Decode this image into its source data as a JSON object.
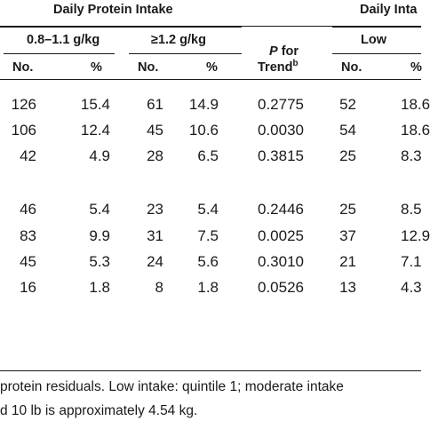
{
  "header": {
    "group1": "Daily Protein Intake",
    "group2": "Daily Inta",
    "sub1": "0.8–1.1 g/kg",
    "sub2": "≥1.2 g/kg",
    "sub3": "Low",
    "p_italic": "P",
    "p_rest": " for",
    "trend": "Trend",
    "trend_sup": "b",
    "col_no": "No.",
    "col_pct": "%"
  },
  "rows": [
    {
      "no1": "126",
      "pct1": "15.4",
      "no2": "61",
      "pct2": "14.9",
      "p": "0.2775",
      "no3": "52",
      "pct3": "18.6"
    },
    {
      "no1": "106",
      "pct1": "12.4",
      "no2": "45",
      "pct2": "10.6",
      "p": "0.0030",
      "no3": "54",
      "pct3": "18.6"
    },
    {
      "no1": "42",
      "pct1": "4.9",
      "no2": "28",
      "pct2": "6.5",
      "p": "0.3815",
      "no3": "25",
      "pct3": "8.3"
    },
    {
      "no1": "46",
      "pct1": "5.4",
      "no2": "23",
      "pct2": "5.4",
      "p": "0.2446",
      "no3": "25",
      "pct3": "8.5"
    },
    {
      "no1": "83",
      "pct1": "9.9",
      "no2": "31",
      "pct2": "7.5",
      "p": "0.0025",
      "no3": "37",
      "pct3": "12.9"
    },
    {
      "no1": "45",
      "pct1": "5.3",
      "no2": "24",
      "pct2": "5.6",
      "p": "0.3010",
      "no3": "21",
      "pct3": "7.1"
    },
    {
      "no1": "16",
      "pct1": "1.8",
      "no2": "8",
      "pct2": "1.8",
      "p": "0.0526",
      "no3": "13",
      "pct3": "4.3"
    }
  ],
  "footnotes": {
    "line1": "protein residuals. Low intake: quintile 1; moderate intake",
    "line2": "d 10 lb is approximately 4.54 kg."
  }
}
